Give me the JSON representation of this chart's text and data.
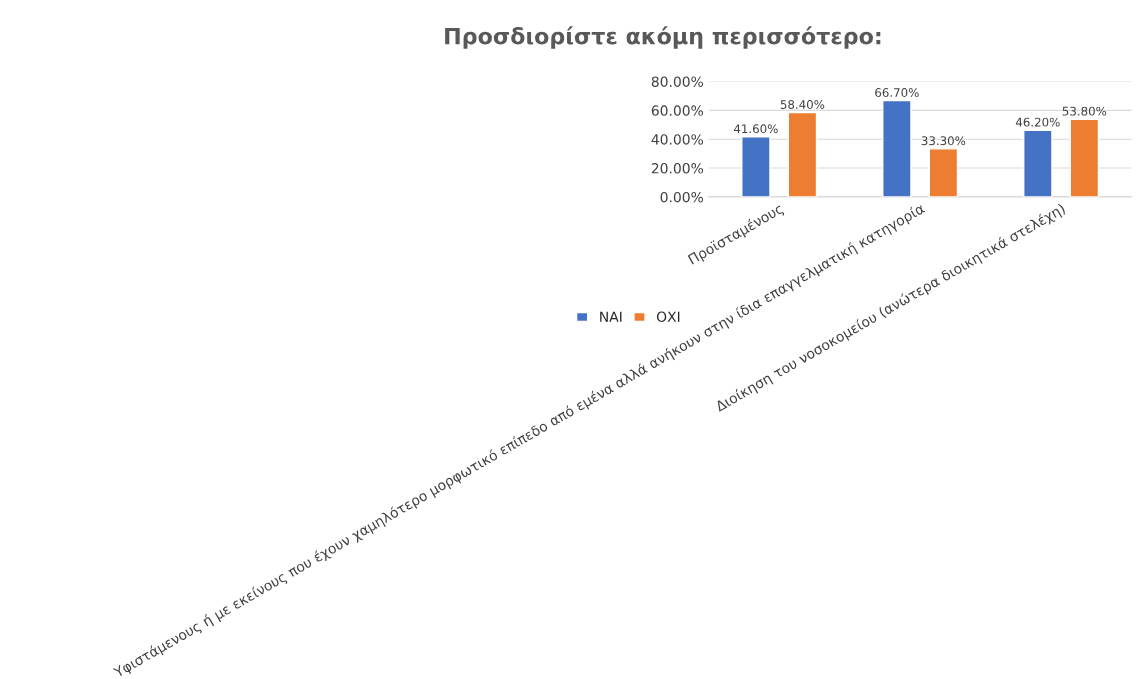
{
  "chart_data": {
    "type": "bar",
    "title": "Προσδιορίστε ακόμη περισσότερο:",
    "categories": [
      "Προϊσταμένους",
      "Υφιστάμενους ή με εκείνους που έχουν χαμηλότερο μορφωτικό επίπεδο από εμένα αλλά ανήκουν στην ίδια επαγγελματική κατηγορία",
      "Διοίκηση του νοσοκομείου (ανώτερα διοικητικά στελέχη)"
    ],
    "series": [
      {
        "name": "ΝΑΙ",
        "color": "#4472c4",
        "values": [
          41.6,
          66.7,
          46.2
        ],
        "value_labels": [
          "41.60%",
          "66.70%",
          "46.20%"
        ]
      },
      {
        "name": "ΟΧΙ",
        "color": "#ed7d31",
        "values": [
          58.4,
          33.3,
          53.8
        ],
        "value_labels": [
          "58.40%",
          "33.30%",
          "53.80%"
        ]
      }
    ],
    "ylim": [
      0,
      80
    ],
    "yticks": [
      {
        "value": 0,
        "label": "0.00%"
      },
      {
        "value": 20,
        "label": "20.00%"
      },
      {
        "value": 40,
        "label": "40.00%"
      },
      {
        "value": 60,
        "label": "60.00%"
      },
      {
        "value": 80,
        "label": "80.00%"
      }
    ],
    "grid": "y",
    "legend": "bottom"
  }
}
